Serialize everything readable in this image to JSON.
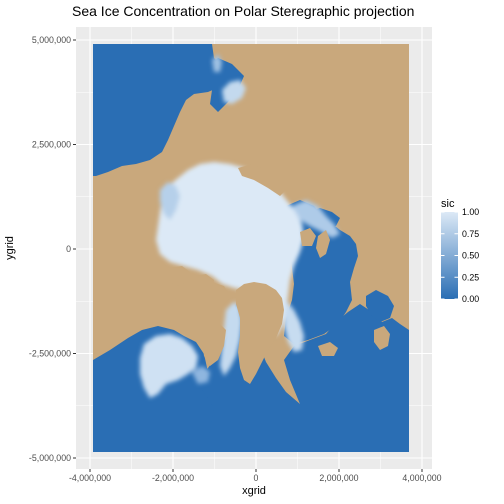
{
  "chart_data": {
    "type": "heatmap",
    "title": "Sea Ice Concentration on Polar Steregraphic projection",
    "xlabel": "xgrid",
    "ylabel": "ygrid",
    "xlim": [
      -4000000,
      4000000
    ],
    "ylim": [
      -5000000,
      5000000
    ],
    "x_ticks": [
      -4000000,
      -2000000,
      0,
      2000000,
      4000000
    ],
    "x_tick_labels": [
      "-4,000,000",
      "-2,000,000",
      "0",
      "2,000,000",
      "4,000,000"
    ],
    "y_ticks": [
      -5000000,
      -2500000,
      0,
      2500000,
      5000000
    ],
    "y_tick_labels": [
      "-5,000,000",
      "-2,500,000",
      "0",
      "2,500,000",
      "5,000,000"
    ],
    "grid": true,
    "data_extent": {
      "x": [
        -3850000,
        3750000
      ],
      "y": [
        -5350000,
        5850000
      ]
    },
    "land_color": "#c9a87c",
    "panel_background": "#ebebeb",
    "grid_color": "#ffffff",
    "legend": {
      "title": "sic",
      "position": "right",
      "ticks": [
        0.0,
        0.25,
        0.5,
        0.75,
        1.0
      ],
      "tick_labels": [
        "0.00",
        "0.25",
        "0.50",
        "0.75",
        "1.00"
      ],
      "color_low": "#2a6eb4",
      "color_high": "#dce9f6"
    }
  }
}
